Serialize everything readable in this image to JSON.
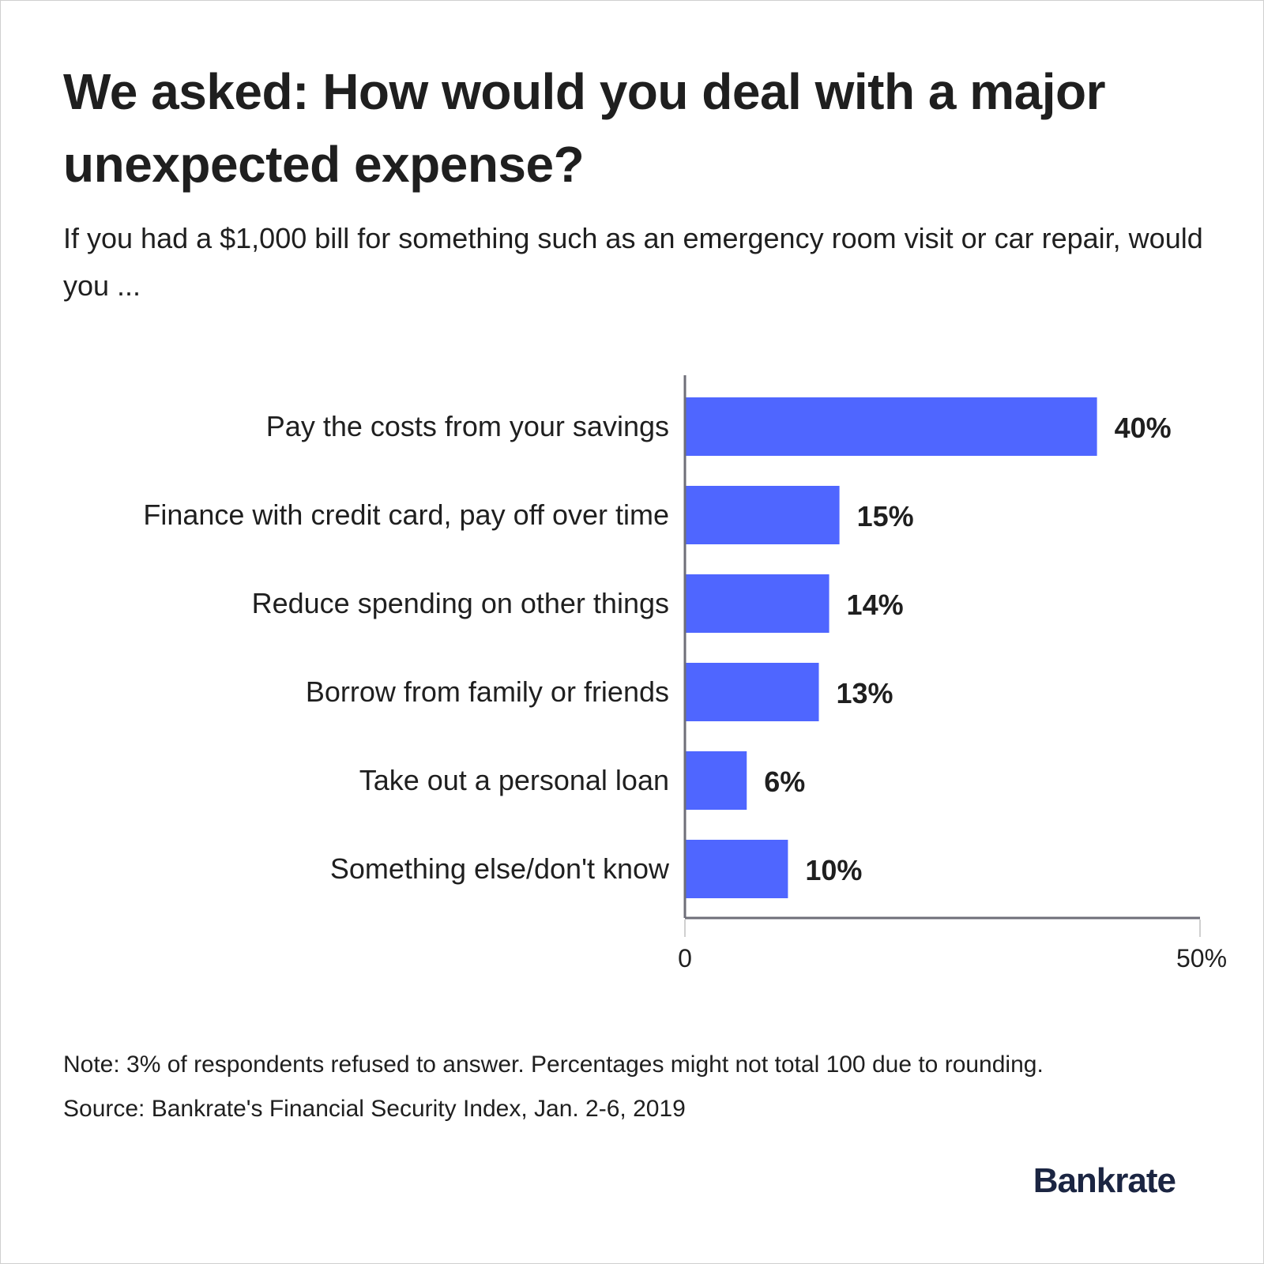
{
  "chart_data": {
    "type": "bar",
    "orientation": "horizontal",
    "title": "We asked: How would you deal with a major unexpected expense?",
    "subtitle": "If you had a $1,000 bill for something such as an emergency room visit or car repair, would you ...",
    "categories": [
      "Pay the costs from your savings",
      "Finance with credit card, pay off over time",
      "Reduce spending on other things",
      "Borrow from family or friends",
      "Take out a personal loan",
      "Something else/don't know"
    ],
    "values": [
      40,
      15,
      14,
      13,
      6,
      10
    ],
    "value_labels": [
      "40%",
      "15%",
      "14%",
      "13%",
      "6%",
      "10%"
    ],
    "xlim": [
      0,
      50
    ],
    "x_ticks": [
      "0",
      "50%"
    ],
    "grid": false,
    "bar_color": "#4f66ff",
    "axis_color": "#6e6e78"
  },
  "footer": {
    "note": "Note: 3% of respondents refused to answer. Percentages might not total 100 due to rounding.",
    "source": "Source: Bankrate's Financial Security Index, Jan. 2-6, 2019",
    "logo": "Bankrate",
    "logo_color": "#1b2542"
  }
}
